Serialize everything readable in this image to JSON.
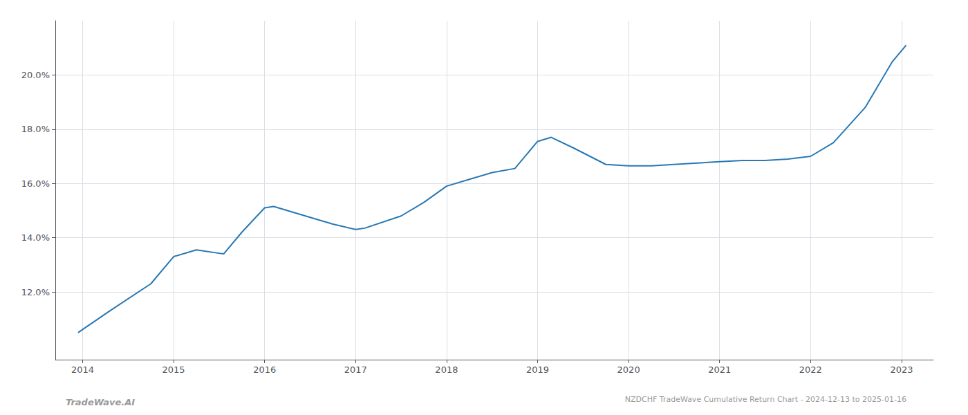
{
  "chart_data": {
    "type": "line",
    "title": "NZDCHF TradeWave Cumulative Return Chart - 2024-12-13 to 2025-01-16",
    "annotations": [
      "TradeWave.AI"
    ],
    "x": [
      2013.95,
      2014.3,
      2014.75,
      2015.0,
      2015.25,
      2015.55,
      2015.75,
      2016.0,
      2016.1,
      2016.5,
      2016.75,
      2017.0,
      2017.1,
      2017.5,
      2017.75,
      2018.0,
      2018.25,
      2018.5,
      2018.75,
      2019.0,
      2019.15,
      2019.4,
      2019.75,
      2020.0,
      2020.25,
      2020.5,
      2020.75,
      2021.0,
      2021.25,
      2021.5,
      2021.75,
      2022.0,
      2022.25,
      2022.6,
      2022.9,
      2023.05
    ],
    "values": [
      10.5,
      11.3,
      12.3,
      13.3,
      13.55,
      13.4,
      14.2,
      15.1,
      15.15,
      14.75,
      14.5,
      14.3,
      14.35,
      14.8,
      15.3,
      15.9,
      16.15,
      16.4,
      16.55,
      17.55,
      17.7,
      17.3,
      16.7,
      16.65,
      16.65,
      16.7,
      16.75,
      16.8,
      16.85,
      16.85,
      16.9,
      17.0,
      17.5,
      18.8,
      20.5,
      21.1
    ],
    "color": "#2878b5",
    "xlim": [
      2013.7,
      2023.35
    ],
    "xticks": [
      2014,
      2015,
      2016,
      2017,
      2018,
      2019,
      2020,
      2021,
      2022,
      2023
    ],
    "ylim": [
      9.5,
      22.0
    ],
    "yticks": [
      {
        "value": 12.0,
        "label": "12.0%"
      },
      {
        "value": 14.0,
        "label": "14.0%"
      },
      {
        "value": 16.0,
        "label": "16.0%"
      },
      {
        "value": 18.0,
        "label": "18.0%"
      },
      {
        "value": 20.0,
        "label": "20.0%"
      }
    ],
    "grid": true
  }
}
